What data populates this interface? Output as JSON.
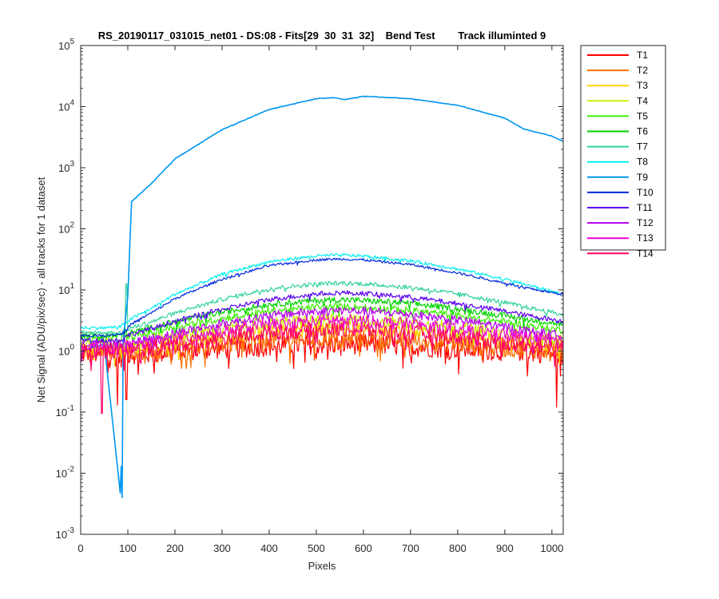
{
  "chart_data": {
    "type": "line",
    "title": "RS_20190117_031015_net01 - DS:08 - Fits[29  30  31  32]    Bend Test        Track illuminted 9",
    "xlabel": "Pixels",
    "ylabel": "Net Signal (ADU/pix/sec) - all tracks for 1 dataset",
    "xlim": [
      0,
      1024
    ],
    "ylim": [
      0.001,
      100000
    ],
    "yscale": "log",
    "x_ticks": [
      0,
      100,
      200,
      300,
      400,
      500,
      600,
      700,
      800,
      900,
      1000
    ],
    "x_tick_labels": [
      "0",
      "100",
      "200",
      "300",
      "400",
      "500",
      "600",
      "700",
      "800",
      "900",
      "1000"
    ],
    "y_ticks": [
      {
        "value": 0.001,
        "base": "10",
        "exp": "-3"
      },
      {
        "value": 0.01,
        "base": "10",
        "exp": "-2"
      },
      {
        "value": 0.1,
        "base": "10",
        "exp": "-1"
      },
      {
        "value": 1,
        "base": "10",
        "exp": "0"
      },
      {
        "value": 10,
        "base": "10",
        "exp": "1"
      },
      {
        "value": 100,
        "base": "10",
        "exp": "2"
      },
      {
        "value": 1000,
        "base": "10",
        "exp": "3"
      },
      {
        "value": 10000,
        "base": "10",
        "exp": "4"
      },
      {
        "value": 100000,
        "base": "10",
        "exp": "5"
      }
    ],
    "grid": false,
    "legend_position": "outside-right",
    "x": [
      0,
      50,
      85,
      90,
      100,
      108,
      150,
      200,
      300,
      400,
      500,
      540,
      560,
      600,
      700,
      800,
      900,
      940,
      1000,
      1024
    ],
    "series": [
      {
        "name": "T1",
        "color": "#ff0000",
        "values": [
          0.9,
          0.9,
          0.8,
          0.8,
          0.9,
          0.9,
          0.9,
          1.0,
          1.1,
          1.2,
          1.3,
          1.3,
          1.3,
          1.3,
          1.2,
          1.1,
          1.0,
          1.0,
          0.9,
          0.9
        ]
      },
      {
        "name": "T2",
        "color": "#ff7000",
        "values": [
          1.0,
          1.0,
          0.9,
          0.9,
          1.0,
          1.0,
          1.0,
          1.1,
          1.3,
          1.5,
          1.6,
          1.6,
          1.6,
          1.6,
          1.5,
          1.3,
          1.1,
          1.1,
          1.0,
          1.0
        ]
      },
      {
        "name": "T3",
        "color": "#ffd200",
        "values": [
          1.1,
          1.1,
          1.1,
          1.1,
          1.1,
          1.1,
          1.2,
          1.4,
          1.7,
          2.1,
          2.3,
          2.4,
          2.4,
          2.3,
          2.1,
          1.8,
          1.5,
          1.4,
          1.3,
          1.2
        ]
      },
      {
        "name": "T4",
        "color": "#c8f000",
        "values": [
          1.3,
          1.3,
          1.3,
          1.3,
          1.3,
          1.3,
          1.5,
          1.8,
          2.3,
          2.9,
          3.2,
          3.3,
          3.3,
          3.2,
          2.9,
          2.4,
          2.0,
          1.8,
          1.6,
          1.5
        ]
      },
      {
        "name": "T5",
        "color": "#3cf000",
        "values": [
          1.6,
          1.6,
          1.6,
          1.6,
          1.7,
          1.7,
          2.0,
          2.5,
          3.4,
          4.5,
          5.2,
          5.3,
          5.3,
          5.2,
          4.6,
          3.8,
          3.0,
          2.7,
          2.3,
          2.2
        ]
      },
      {
        "name": "T6",
        "color": "#00d200",
        "values": [
          1.8,
          1.8,
          1.8,
          1.9,
          2.0,
          2.0,
          2.4,
          3.0,
          4.3,
          5.8,
          6.7,
          6.9,
          6.9,
          6.7,
          6.0,
          4.9,
          3.8,
          3.4,
          2.9,
          2.7
        ]
      },
      {
        "name": "T7",
        "color": "#32d29b",
        "values": [
          2.0,
          2.0,
          2.0,
          2.1,
          2.3,
          2.4,
          3.0,
          4.2,
          7.0,
          10.5,
          12.5,
          12.9,
          13.0,
          12.6,
          11.0,
          8.6,
          6.2,
          5.3,
          4.3,
          3.9
        ]
      },
      {
        "name": "T8",
        "color": "#00f0f0",
        "values": [
          2.4,
          2.4,
          2.5,
          2.7,
          3.1,
          3.4,
          5.0,
          8.5,
          18.0,
          29.0,
          36.0,
          37.0,
          37.0,
          36.0,
          30.0,
          22.0,
          15.0,
          12.5,
          9.5,
          8.5
        ]
      },
      {
        "name": "T9",
        "color": "#0096f0",
        "values": [
          1.0,
          1.3,
          0.004,
          1.4,
          8.0,
          280.0,
          550.0,
          1400.0,
          4200.0,
          9000.0,
          13500.0,
          14000.0,
          13000.0,
          14800.0,
          13500.0,
          10500.0,
          6500.0,
          4300.0,
          3300.0,
          2700.0
        ]
      },
      {
        "name": "T10",
        "color": "#0028dc",
        "values": [
          1.8,
          1.8,
          1.9,
          2.0,
          2.4,
          2.8,
          4.2,
          7.2,
          15.0,
          25.0,
          31.0,
          32.0,
          32.0,
          31.0,
          26.0,
          19.0,
          13.0,
          11.0,
          9.0,
          8.5
        ]
      },
      {
        "name": "T11",
        "color": "#5a00f0",
        "values": [
          1.5,
          1.5,
          1.5,
          1.6,
          1.8,
          1.9,
          2.3,
          3.1,
          4.8,
          7.0,
          8.6,
          9.0,
          9.0,
          8.8,
          7.6,
          6.0,
          4.5,
          3.9,
          3.3,
          3.0
        ]
      },
      {
        "name": "T12",
        "color": "#b400f0",
        "values": [
          1.3,
          1.3,
          1.3,
          1.3,
          1.4,
          1.4,
          1.6,
          2.0,
          2.8,
          3.8,
          4.5,
          4.6,
          4.6,
          4.5,
          4.0,
          3.2,
          2.5,
          2.2,
          1.9,
          1.8
        ]
      },
      {
        "name": "T13",
        "color": "#f000d2",
        "values": [
          1.1,
          1.1,
          1.1,
          1.1,
          1.2,
          1.2,
          1.3,
          1.6,
          2.1,
          2.7,
          3.1,
          3.2,
          3.2,
          3.1,
          2.8,
          2.3,
          1.9,
          1.7,
          1.5,
          1.4
        ]
      },
      {
        "name": "T14",
        "color": "#ff0064",
        "values": [
          1.0,
          1.0,
          1.0,
          1.0,
          1.0,
          1.0,
          1.1,
          1.3,
          1.6,
          2.0,
          2.2,
          2.3,
          2.3,
          2.2,
          2.0,
          1.7,
          1.4,
          1.3,
          1.2,
          1.1
        ]
      }
    ],
    "annotations": [
      {
        "series": "T9",
        "x": 88,
        "y": 0.004
      },
      {
        "series": "T7",
        "x": 97,
        "y": 12.5
      },
      {
        "series": "T14",
        "x": 45,
        "y": 0.095
      },
      {
        "series": "T1",
        "x": 78,
        "y": 0.13
      },
      {
        "series": "T1",
        "x": 97,
        "y": 0.16
      },
      {
        "series": "T1",
        "x": 1010,
        "y": 0.12
      }
    ]
  }
}
